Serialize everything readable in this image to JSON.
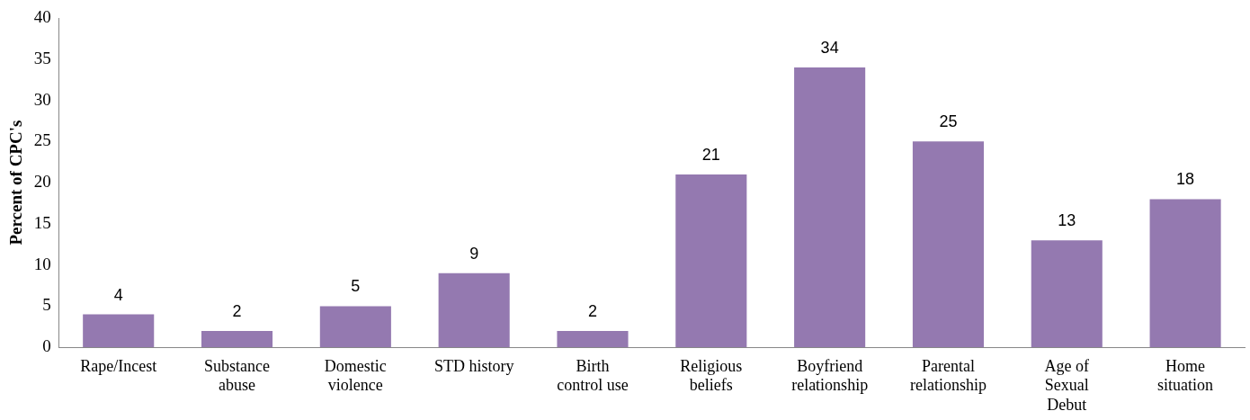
{
  "chart_data": {
    "type": "bar",
    "ylabel": "Percent of CPC's",
    "categories": [
      "Rape/Incest",
      "Substance abuse",
      "Domestic violence",
      "STD history",
      "Birth control use",
      "Religious beliefs",
      "Boyfriend relationship",
      "Parental relationship",
      "Age of Sexual Debut",
      "Home situation"
    ],
    "values": [
      4,
      2,
      5,
      9,
      2,
      21,
      34,
      25,
      13,
      18
    ],
    "color": "#9479b0",
    "ylim": [
      0,
      40
    ],
    "yticks": [
      0,
      5,
      10,
      15,
      20,
      25,
      30,
      35,
      40
    ],
    "data_labels": true,
    "grid": false,
    "legend": false
  }
}
